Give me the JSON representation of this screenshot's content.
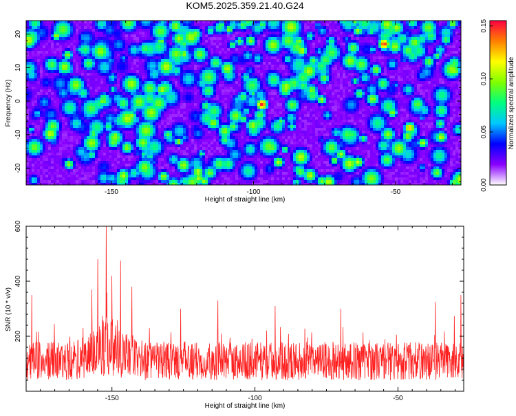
{
  "title": "KOM5.2025.359.21.40.G24",
  "chart_data": [
    {
      "type": "heatmap",
      "xlabel": "Height of straight line (km)",
      "ylabel": "Frequency (Hz)",
      "xlim": [
        -180,
        -27
      ],
      "ylim": [
        -25,
        24
      ],
      "x_ticks": [
        -150,
        -100,
        -50
      ],
      "x_tick_labels": [
        "-150",
        "-100",
        "-50"
      ],
      "y_ticks": [
        -20,
        -10,
        0,
        10,
        20
      ],
      "y_tick_labels": [
        "-20",
        "-10",
        "0",
        "10",
        "20"
      ],
      "colorbar": {
        "label": "Normalized spectral amplitude",
        "range": [
          0,
          0.155
        ],
        "ticks": [
          0,
          0.05,
          0.1,
          0.15
        ],
        "tick_labels": [
          "0.00",
          "0.05",
          "0.10",
          "0.15"
        ],
        "colors": [
          "#ffffff",
          "#8a00ff",
          "#0000ff",
          "#00c8ff",
          "#00ff80",
          "#80ff00",
          "#ffff00",
          "#ff8000",
          "#ff0040"
        ]
      },
      "peaks": [
        {
          "x": -97,
          "y": -1,
          "value": 0.15
        },
        {
          "x": -54,
          "y": 17,
          "value": 0.15
        },
        {
          "x": -45,
          "y": -8,
          "value": 0.13
        },
        {
          "x": -153,
          "y": 0,
          "value": 0.1
        },
        {
          "x": -83,
          "y": 15,
          "value": 0.11
        },
        {
          "x": -101,
          "y": 18,
          "value": 0.1
        },
        {
          "x": -79,
          "y": 12,
          "value": 0.09
        },
        {
          "x": -130,
          "y": -10,
          "value": 0.09
        },
        {
          "x": -157,
          "y": -16,
          "value": 0.08
        },
        {
          "x": -125,
          "y": 14,
          "value": 0.07
        }
      ]
    },
    {
      "type": "line",
      "xlabel": "Height of straight line (km)",
      "ylabel": "SNR (10 * v/v)",
      "xlim": [
        -180,
        -27
      ],
      "ylim": [
        0,
        600
      ],
      "x_ticks": [
        -150,
        -100,
        -50
      ],
      "x_tick_labels": [
        "-150",
        "-100",
        "-50"
      ],
      "y_ticks": [
        200,
        400,
        600
      ],
      "y_tick_labels": [
        "200",
        "400",
        "600"
      ],
      "color": "#ff2020",
      "baseline_mean": 110,
      "peaks": [
        {
          "x": -152,
          "value": 600
        },
        {
          "x": -155,
          "value": 480
        },
        {
          "x": -147,
          "value": 475
        },
        {
          "x": -150,
          "value": 420
        },
        {
          "x": -143,
          "value": 380
        },
        {
          "x": -157,
          "value": 370
        },
        {
          "x": -178,
          "value": 350
        },
        {
          "x": -28,
          "value": 350
        },
        {
          "x": -113,
          "value": 330
        },
        {
          "x": -37,
          "value": 325
        },
        {
          "x": -93,
          "value": 310
        },
        {
          "x": -126,
          "value": 300
        },
        {
          "x": -70,
          "value": 300
        }
      ]
    }
  ]
}
